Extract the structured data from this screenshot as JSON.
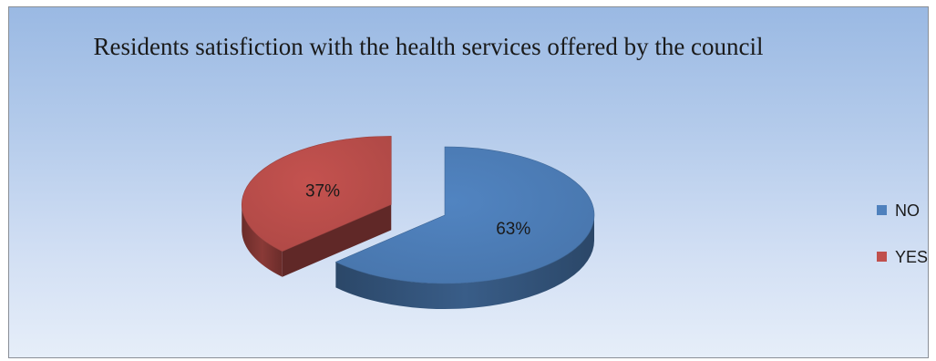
{
  "chart_data": {
    "type": "pie",
    "title": "Residents satisfiction with the health services offered by the council",
    "categories": [
      "NO",
      "YES"
    ],
    "values": [
      63,
      37
    ],
    "data_labels": [
      "63%",
      "37%"
    ],
    "colors": [
      "#4f81bd",
      "#c0504d"
    ],
    "exploded": true,
    "three_d": true,
    "legend_position": "right"
  }
}
